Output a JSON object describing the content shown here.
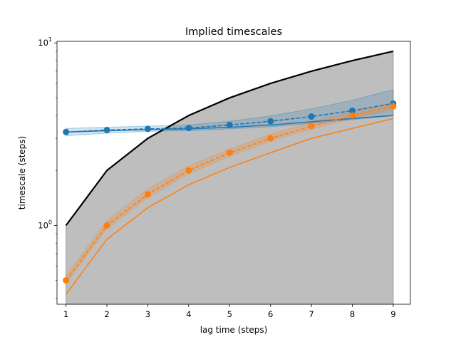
{
  "chart_data": {
    "type": "line",
    "title": "Implied timescales",
    "xlabel": "lag time (steps)",
    "ylabel": "timescale (steps)",
    "yscale": "log",
    "xlim": [
      0.78,
      9.42
    ],
    "ylim": [
      0.37,
      10.2
    ],
    "x": [
      1,
      2,
      3,
      4,
      5,
      6,
      7,
      8,
      9
    ],
    "x_ticks": [
      1,
      2,
      3,
      4,
      5,
      6,
      7,
      8,
      9
    ],
    "y_ticks": [
      {
        "value": 1,
        "base": "10",
        "exp": "0"
      },
      {
        "value": 10,
        "base": "10",
        "exp": "1"
      }
    ],
    "grid": false,
    "legend": "none",
    "lag_time_line": {
      "color": "#000000",
      "values": [
        1,
        2,
        3,
        4,
        5,
        6,
        7,
        8,
        9
      ]
    },
    "series": [
      {
        "color": "#1f77b4",
        "sample_mean": [
          3.25,
          3.33,
          3.38,
          3.42,
          3.55,
          3.72,
          3.95,
          4.25,
          4.65
        ],
        "sample_conf_lower": [
          3.1,
          3.2,
          3.28,
          3.3,
          3.38,
          3.47,
          3.62,
          3.8,
          4.0
        ],
        "sample_conf_upper": [
          3.4,
          3.45,
          3.5,
          3.55,
          3.72,
          3.98,
          4.35,
          4.85,
          5.55
        ],
        "ml_estimate": [
          3.25,
          3.3,
          3.35,
          3.38,
          3.45,
          3.55,
          3.7,
          3.85,
          4.0
        ]
      },
      {
        "color": "#ff7f0e",
        "sample_mean": [
          0.5,
          1.0,
          1.48,
          2.0,
          2.5,
          3.0,
          3.5,
          4.0,
          4.5
        ],
        "sample_conf_lower": [
          0.48,
          0.96,
          1.42,
          1.92,
          2.4,
          2.9,
          3.38,
          3.85,
          4.32
        ],
        "sample_conf_upper": [
          0.53,
          1.06,
          1.58,
          2.12,
          2.62,
          3.15,
          3.68,
          4.2,
          4.72
        ],
        "ml_estimate": [
          0.42,
          0.84,
          1.25,
          1.67,
          2.08,
          2.5,
          3.0,
          3.4,
          3.85
        ]
      }
    ]
  }
}
